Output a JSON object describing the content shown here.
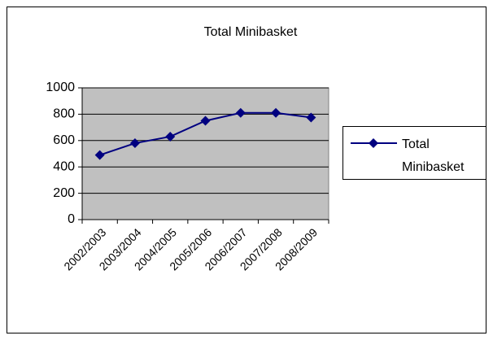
{
  "chart_data": {
    "type": "line",
    "title": "Total Minibasket",
    "categories": [
      "2002/2003",
      "2003/2004",
      "2004/2005",
      "2005/2006",
      "2006/2007",
      "2007/2008",
      "2008/2009"
    ],
    "series": [
      {
        "name": "Total Minibasket",
        "color": "#000080",
        "values": [
          490,
          580,
          630,
          750,
          810,
          810,
          775
        ]
      }
    ],
    "ylim": [
      0,
      1000
    ],
    "yticks": [
      0,
      200,
      400,
      600,
      800,
      1000
    ],
    "grid": true,
    "legend": "right"
  }
}
